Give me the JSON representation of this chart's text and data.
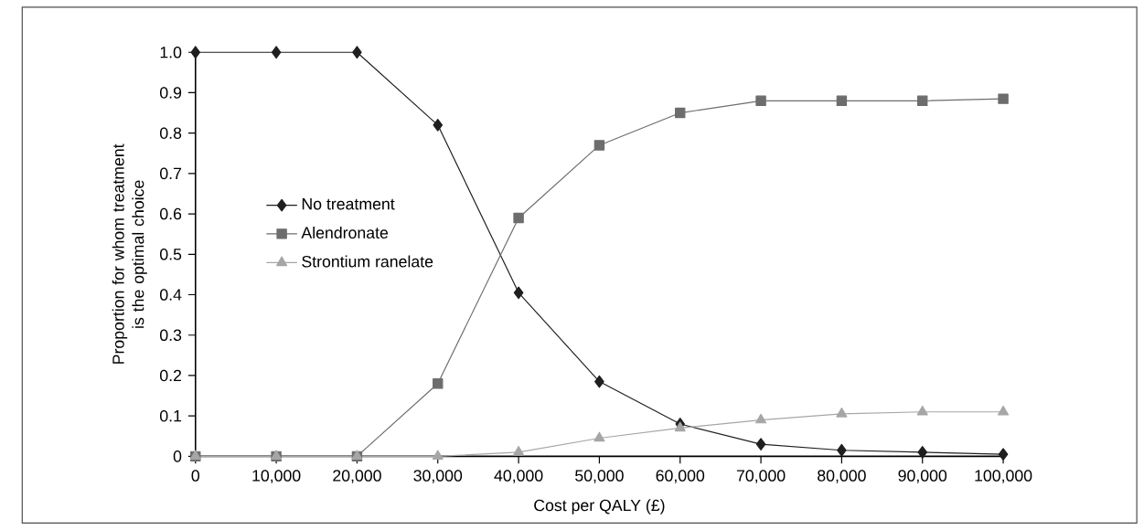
{
  "chart_data": {
    "type": "line",
    "xlabel": "Cost per QALY (£)",
    "ylabel": "Proportion for whom treatment is the optimal choice",
    "categories": [
      "0",
      "10,000",
      "20,000",
      "30,000",
      "40,000",
      "50,000",
      "60,000",
      "70,000",
      "80,000",
      "90,000",
      "100,000"
    ],
    "series": [
      {
        "name": "No treatment",
        "color": "#1f1f1f",
        "marker": "diamond",
        "values": [
          1,
          1,
          1,
          0.82,
          0.405,
          0.185,
          0.08,
          0.03,
          0.015,
          0.01,
          0.005
        ]
      },
      {
        "name": "Alendronate",
        "color": "#6d6d6d",
        "marker": "square",
        "values": [
          0,
          0,
          0,
          0.18,
          0.59,
          0.77,
          0.85,
          0.88,
          0.88,
          0.88,
          0.885
        ]
      },
      {
        "name": "Strontium ranelate",
        "color": "#a6a6a6",
        "marker": "triangle",
        "values": [
          0,
          0,
          0,
          0,
          0.01,
          0.045,
          0.07,
          0.09,
          0.105,
          0.11,
          0.11
        ]
      }
    ],
    "ylim": [
      0,
      1
    ],
    "yticks": [
      0,
      0.1,
      0.2,
      0.3,
      0.4,
      0.5,
      0.6,
      0.7,
      0.8,
      0.9,
      {
        "value": 1,
        "label": "1.0"
      }
    ],
    "grid": false,
    "legend": "left",
    "line_style": "solid"
  }
}
